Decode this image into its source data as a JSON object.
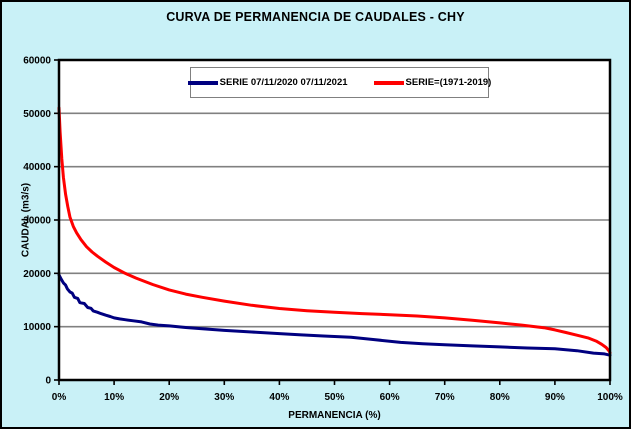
{
  "window": {
    "title": "CURVA DE PERMANENCIA DE CAUDALES - CHY"
  },
  "colors": {
    "background": "#C9F1F7",
    "plot_background": "#FFFFFF",
    "plot_border": "#000000",
    "gridline": "#808080",
    "legend_background": "#FFFFFF",
    "legend_border": "#808080",
    "series_blue": "#000080",
    "series_red": "#FF0000"
  },
  "chart_data": {
    "type": "line",
    "title": "CURVA DE PERMANENCIA DE CAUDALES - CHY",
    "xlabel": "PERMANENCIA (%)",
    "ylabel": "CAUDAL (m3/s)",
    "xlim": [
      0,
      100
    ],
    "ylim": [
      0,
      60000
    ],
    "x_ticks": [
      "0%",
      "10%",
      "20%",
      "30%",
      "40%",
      "50%",
      "60%",
      "70%",
      "80%",
      "90%",
      "100%"
    ],
    "y_ticks": [
      0,
      10000,
      20000,
      30000,
      40000,
      50000,
      60000
    ],
    "grid": "horizontal-only",
    "legend_position": "top-center-inside",
    "series": [
      {
        "name": "SERIE 07/11/2020 07/11/2021",
        "color": "#000080",
        "x": [
          0,
          0.4,
          0.8,
          1.2,
          1.5,
          2,
          2.4,
          2.8,
          3.4,
          3.8,
          4.6,
          5.2,
          5.8,
          6.2,
          7,
          7.6,
          8.5,
          9.3,
          10,
          11,
          12,
          13.5,
          15,
          16.5,
          18,
          20,
          23,
          26,
          30,
          35,
          40,
          44,
          48,
          53,
          57,
          62,
          66,
          70,
          75,
          80,
          85,
          90,
          94,
          97,
          99,
          100
        ],
        "y": [
          19700,
          18900,
          18200,
          17800,
          17100,
          16500,
          16300,
          15500,
          15300,
          14500,
          14350,
          13600,
          13450,
          12950,
          12700,
          12450,
          12150,
          11900,
          11650,
          11450,
          11300,
          11100,
          10900,
          10500,
          10300,
          10150,
          9850,
          9600,
          9300,
          9000,
          8700,
          8450,
          8250,
          8000,
          7600,
          7050,
          6800,
          6600,
          6400,
          6200,
          6000,
          5850,
          5500,
          5050,
          4900,
          4650
        ]
      },
      {
        "name": "SERIE=(1971-2019)",
        "color": "#FF0000",
        "x": [
          0,
          0.2,
          0.5,
          0.8,
          1.2,
          1.6,
          2,
          2.6,
          3.2,
          4,
          5,
          6,
          7,
          8.5,
          10,
          12,
          14,
          17,
          20,
          23,
          26,
          30,
          35,
          40,
          45,
          50,
          55,
          60,
          65,
          70,
          75,
          80,
          84,
          88,
          90,
          92,
          94,
          96,
          97.5,
          98.5,
          99.3,
          99.8,
          100
        ],
        "y": [
          51000,
          46500,
          41500,
          38000,
          34800,
          32500,
          30500,
          28800,
          27600,
          26300,
          25000,
          24000,
          23200,
          22100,
          21100,
          20000,
          19100,
          17900,
          16900,
          16100,
          15500,
          14800,
          14000,
          13400,
          13000,
          12700,
          12450,
          12250,
          12000,
          11650,
          11200,
          10700,
          10300,
          9800,
          9400,
          8900,
          8400,
          7900,
          7300,
          6700,
          6100,
          5500,
          5100
        ]
      }
    ]
  }
}
